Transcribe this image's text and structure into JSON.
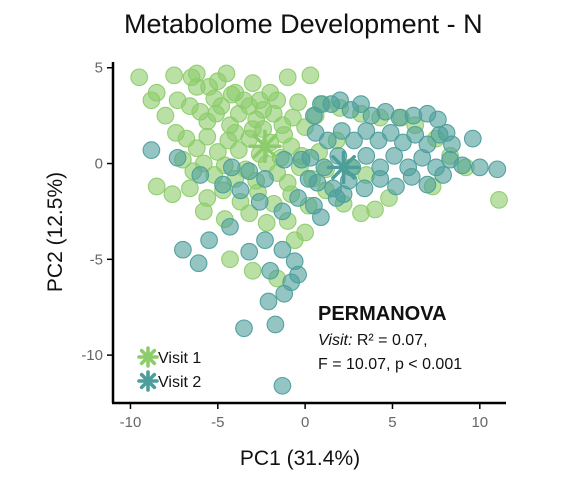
{
  "chart_data": {
    "type": "scatter",
    "title": "Metabolome Development - N",
    "xlabel": "PC1 (31.4%)",
    "ylabel": "PC2 (12.5%)",
    "xlim": [
      -11,
      11.5
    ],
    "ylim": [
      -12.5,
      5.3
    ],
    "xticks": [
      -10,
      -5,
      0,
      5,
      10
    ],
    "yticks": [
      5,
      0,
      -5,
      -10
    ],
    "xtick_labels": [
      "-10",
      "-5",
      "0",
      "5",
      "10"
    ],
    "ytick_labels": [
      "5",
      "0",
      "-5",
      "-10"
    ],
    "grid": false,
    "legend_position": "bottom-left",
    "annotation": {
      "heading": "PERMANOVA",
      "line1_italic": "Visit:",
      "line1_rest": " R² = 0.07,",
      "line2": "F = 10.07, p < 0.001"
    },
    "series": [
      {
        "name": "Visit 1",
        "color": "#8ccc6a",
        "centroid": [
          -2.3,
          0.9
        ],
        "points": [
          [
            -9.5,
            4.5
          ],
          [
            -8.5,
            3.7
          ],
          [
            -7.5,
            4.6
          ],
          [
            -6.5,
            4.5
          ],
          [
            -6.2,
            4.7
          ],
          [
            -5.5,
            4.0
          ],
          [
            -5.0,
            4.3
          ],
          [
            -4.5,
            4.7
          ],
          [
            -4.0,
            3.7
          ],
          [
            -3.0,
            4.2
          ],
          [
            -2.0,
            3.7
          ],
          [
            -1.0,
            4.5
          ],
          [
            0.3,
            4.6
          ],
          [
            -8.8,
            3.3
          ],
          [
            -8.0,
            2.5
          ],
          [
            -7.3,
            3.3
          ],
          [
            -6.6,
            3.0
          ],
          [
            -6.0,
            2.7
          ],
          [
            -5.6,
            2.2
          ],
          [
            -5.1,
            2.6
          ],
          [
            -4.8,
            3.0
          ],
          [
            -4.3,
            2.0
          ],
          [
            -3.8,
            2.6
          ],
          [
            -3.2,
            3.0
          ],
          [
            -2.8,
            2.3
          ],
          [
            -2.4,
            1.8
          ],
          [
            -1.8,
            2.6
          ],
          [
            -1.3,
            2.0
          ],
          [
            -0.7,
            2.4
          ],
          [
            0.0,
            1.9
          ],
          [
            0.6,
            2.5
          ],
          [
            -7.4,
            1.6
          ],
          [
            -6.8,
            1.3
          ],
          [
            -6.2,
            0.8
          ],
          [
            -5.6,
            1.4
          ],
          [
            -5.0,
            0.6
          ],
          [
            -4.4,
            1.2
          ],
          [
            -3.8,
            0.7
          ],
          [
            -3.2,
            1.3
          ],
          [
            -2.6,
            0.5
          ],
          [
            -2.0,
            1.1
          ],
          [
            -1.4,
            0.3
          ],
          [
            -0.8,
            0.9
          ],
          [
            -0.2,
            0.4
          ],
          [
            0.8,
            0.6
          ],
          [
            1.8,
            1.2
          ],
          [
            -7.0,
            0.2
          ],
          [
            -6.4,
            -0.4
          ],
          [
            -5.8,
            0.0
          ],
          [
            -5.2,
            -0.6
          ],
          [
            -4.6,
            -0.1
          ],
          [
            -4.0,
            -0.8
          ],
          [
            -3.4,
            -0.3
          ],
          [
            -2.8,
            -0.9
          ],
          [
            -2.2,
            0.0
          ],
          [
            -1.6,
            -0.5
          ],
          [
            -1.0,
            -1.0
          ],
          [
            -0.3,
            -0.2
          ],
          [
            0.4,
            -0.8
          ],
          [
            1.2,
            -0.3
          ],
          [
            2.6,
            -0.2
          ],
          [
            3.5,
            -0.6
          ],
          [
            -8.5,
            -1.2
          ],
          [
            -7.6,
            -1.6
          ],
          [
            -6.6,
            -1.3
          ],
          [
            -5.6,
            -1.8
          ],
          [
            -4.7,
            -1.4
          ],
          [
            -3.7,
            -2.0
          ],
          [
            -2.7,
            -1.5
          ],
          [
            -1.8,
            -2.1
          ],
          [
            -0.8,
            -1.6
          ],
          [
            0.2,
            -2.2
          ],
          [
            1.2,
            -1.4
          ],
          [
            2.2,
            -2.1
          ],
          [
            3.2,
            -2.6
          ],
          [
            4.0,
            -2.4
          ],
          [
            4.8,
            -1.8
          ],
          [
            -5.8,
            -2.5
          ],
          [
            -4.6,
            -2.9
          ],
          [
            -3.2,
            -2.6
          ],
          [
            -2.2,
            -3.1
          ],
          [
            -1.0,
            -3.0
          ],
          [
            0.0,
            -3.6
          ],
          [
            -0.6,
            -4.0
          ],
          [
            -4.3,
            -5.0
          ],
          [
            -3.0,
            -5.6
          ],
          [
            -1.6,
            -6.0
          ],
          [
            -6.2,
            4.0
          ],
          [
            -5.2,
            3.4
          ],
          [
            -4.2,
            3.6
          ],
          [
            -3.5,
            3.3
          ],
          [
            -2.6,
            3.3
          ],
          [
            -1.6,
            3.3
          ],
          [
            -0.4,
            3.2
          ],
          [
            1.0,
            3.1
          ],
          [
            2.0,
            2.9
          ],
          [
            3.2,
            2.6
          ],
          [
            4.3,
            2.4
          ],
          [
            5.5,
            2.4
          ],
          [
            6.3,
            2.0
          ],
          [
            7.5,
            1.3
          ],
          [
            8.3,
            0.4
          ],
          [
            9.2,
            -0.2
          ],
          [
            11.1,
            -1.9
          ],
          [
            7.3,
            -1.2
          ],
          [
            -4.0,
            1.6
          ],
          [
            -3.0,
            1.8
          ],
          [
            -1.2,
            1.5
          ],
          [
            -2.4,
            2.8
          ]
        ]
      },
      {
        "name": "Visit 2",
        "color": "#4d9e9b",
        "centroid": [
          2.2,
          -0.2
        ],
        "points": [
          [
            -8.8,
            0.7
          ],
          [
            -7.3,
            0.3
          ],
          [
            -6.0,
            -0.6
          ],
          [
            -4.7,
            -1.1
          ],
          [
            -3.7,
            -1.4
          ],
          [
            -2.6,
            -2.0
          ],
          [
            -1.3,
            -2.5
          ],
          [
            -0.4,
            -1.8
          ],
          [
            0.2,
            -0.8
          ],
          [
            -0.2,
            0.2
          ],
          [
            -1.2,
            0.2
          ],
          [
            -2.3,
            -0.8
          ],
          [
            -3.2,
            -0.4
          ],
          [
            -4.2,
            -0.2
          ],
          [
            -5.5,
            -4.0
          ],
          [
            -4.3,
            -3.3
          ],
          [
            -3.2,
            -4.6
          ],
          [
            -2.3,
            -4.0
          ],
          [
            -1.3,
            -4.5
          ],
          [
            -0.6,
            -5.1
          ],
          [
            -2.0,
            -5.6
          ],
          [
            -0.8,
            -6.2
          ],
          [
            -1.2,
            -6.8
          ],
          [
            -3.5,
            -8.6
          ],
          [
            -1.7,
            -8.4
          ],
          [
            -7.0,
            -4.5
          ],
          [
            -1.3,
            -11.6
          ],
          [
            -6.1,
            -5.2
          ],
          [
            -0.4,
            -5.8
          ],
          [
            -2.1,
            -7.2
          ],
          [
            0.5,
            2.5
          ],
          [
            0.9,
            3.1
          ],
          [
            1.5,
            3.1
          ],
          [
            2.0,
            3.3
          ],
          [
            2.6,
            2.8
          ],
          [
            3.2,
            3.1
          ],
          [
            3.8,
            2.5
          ],
          [
            4.6,
            2.7
          ],
          [
            5.4,
            2.4
          ],
          [
            6.2,
            2.5
          ],
          [
            7.0,
            2.6
          ],
          [
            7.6,
            2.3
          ],
          [
            8.1,
            1.6
          ],
          [
            9.6,
            1.3
          ],
          [
            0.6,
            1.6
          ],
          [
            1.3,
            1.2
          ],
          [
            2.1,
            1.7
          ],
          [
            2.8,
            1.2
          ],
          [
            3.5,
            1.7
          ],
          [
            4.2,
            1.2
          ],
          [
            4.9,
            1.6
          ],
          [
            5.6,
            1.1
          ],
          [
            6.3,
            1.5
          ],
          [
            7.0,
            1.0
          ],
          [
            7.7,
            1.5
          ],
          [
            8.4,
            1.0
          ],
          [
            0.3,
            0.3
          ],
          [
            1.1,
            -0.2
          ],
          [
            1.9,
            0.4
          ],
          [
            2.7,
            -0.2
          ],
          [
            3.5,
            0.4
          ],
          [
            4.3,
            -0.2
          ],
          [
            5.1,
            0.4
          ],
          [
            5.9,
            -0.2
          ],
          [
            6.7,
            0.3
          ],
          [
            7.5,
            -0.2
          ],
          [
            8.3,
            0.2
          ],
          [
            9.0,
            -0.1
          ],
          [
            10.0,
            -0.2
          ],
          [
            0.7,
            -1.0
          ],
          [
            1.6,
            -1.3
          ],
          [
            2.5,
            -0.9
          ],
          [
            3.4,
            -1.3
          ],
          [
            4.3,
            -0.8
          ],
          [
            5.2,
            -1.2
          ],
          [
            6.1,
            -0.7
          ],
          [
            7.0,
            -1.1
          ],
          [
            7.9,
            -0.6
          ],
          [
            11.0,
            -0.3
          ],
          [
            0.5,
            -2.2
          ],
          [
            1.8,
            -1.8
          ],
          [
            0.9,
            -2.8
          ],
          [
            2.2,
            -1.6
          ]
        ]
      }
    ]
  }
}
